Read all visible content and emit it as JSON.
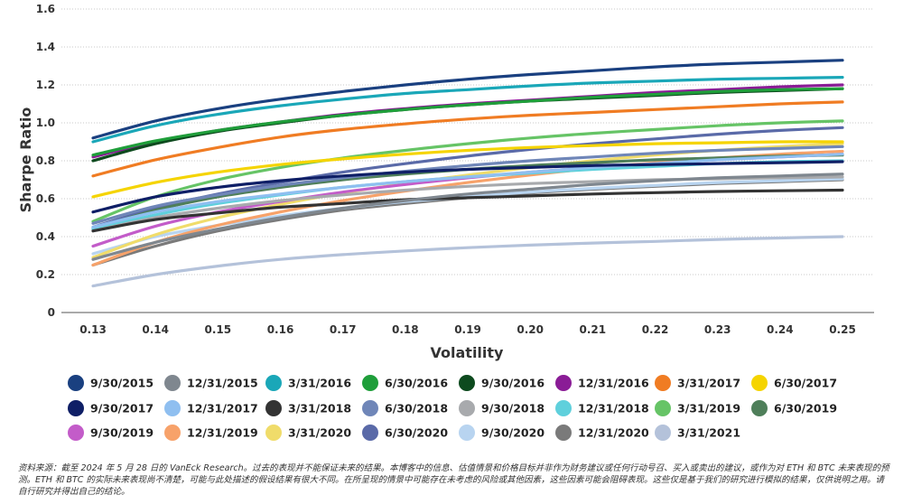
{
  "chart_data": {
    "type": "line",
    "xlabel": "Volatility",
    "ylabel": "Sharpe Ratio",
    "x": [
      0.13,
      0.14,
      0.15,
      0.16,
      0.17,
      0.18,
      0.19,
      0.2,
      0.21,
      0.22,
      0.23,
      0.24,
      0.25
    ],
    "x_tick_labels": [
      "0.13",
      "0.14",
      "0.15",
      "0.16",
      "0.17",
      "0.18",
      "0.19",
      "0.20",
      "0.21",
      "0.22",
      "0.23",
      "0.24",
      "0.25"
    ],
    "ylim": [
      0,
      1.6
    ],
    "y_tick_labels": [
      "0",
      "0.2",
      "0.4",
      "0.6",
      "0.8",
      "1.0",
      "1.2",
      "1.4",
      "1.6"
    ],
    "grid": "horizontal-dotted",
    "legend_position": "bottom",
    "series": [
      {
        "name": "9/30/2015",
        "color": "#1a4080",
        "values": [
          0.92,
          1.01,
          1.075,
          1.125,
          1.165,
          1.2,
          1.23,
          1.255,
          1.275,
          1.295,
          1.31,
          1.32,
          1.33
        ]
      },
      {
        "name": "12/31/2015",
        "color": "#7f878f",
        "values": [
          0.28,
          0.37,
          0.44,
          0.5,
          0.55,
          0.59,
          0.625,
          0.65,
          0.675,
          0.695,
          0.71,
          0.72,
          0.73
        ]
      },
      {
        "name": "3/31/2016",
        "color": "#1aa7b8",
        "values": [
          0.9,
          0.985,
          1.045,
          1.09,
          1.125,
          1.155,
          1.175,
          1.195,
          1.21,
          1.22,
          1.23,
          1.235,
          1.24
        ]
      },
      {
        "name": "6/30/2016",
        "color": "#1f9e3a",
        "values": [
          0.83,
          0.905,
          0.96,
          1.005,
          1.04,
          1.07,
          1.095,
          1.115,
          1.135,
          1.15,
          1.165,
          1.175,
          1.18
        ]
      },
      {
        "name": "9/30/2016",
        "color": "#0d4a1e",
        "values": [
          0.8,
          0.89,
          0.955,
          1.0,
          1.04,
          1.07,
          1.095,
          1.115,
          1.13,
          1.145,
          1.16,
          1.17,
          1.18
        ]
      },
      {
        "name": "12/31/2016",
        "color": "#8a1c96",
        "values": [
          0.82,
          0.9,
          0.96,
          1.005,
          1.045,
          1.075,
          1.1,
          1.12,
          1.14,
          1.16,
          1.175,
          1.19,
          1.2
        ]
      },
      {
        "name": "3/31/2017",
        "color": "#f07c23",
        "values": [
          0.72,
          0.805,
          0.87,
          0.925,
          0.965,
          0.995,
          1.02,
          1.04,
          1.055,
          1.07,
          1.085,
          1.1,
          1.11
        ]
      },
      {
        "name": "6/30/2017",
        "color": "#f5d400",
        "values": [
          0.61,
          0.685,
          0.74,
          0.78,
          0.81,
          0.835,
          0.855,
          0.87,
          0.88,
          0.89,
          0.895,
          0.9,
          0.9
        ]
      },
      {
        "name": "9/30/2017",
        "color": "#0f1f66",
        "values": [
          0.53,
          0.61,
          0.66,
          0.695,
          0.72,
          0.74,
          0.755,
          0.765,
          0.775,
          0.78,
          0.785,
          0.79,
          0.795
        ]
      },
      {
        "name": "12/31/2017",
        "color": "#8fbff0",
        "values": [
          0.45,
          0.53,
          0.585,
          0.625,
          0.66,
          0.69,
          0.715,
          0.74,
          0.765,
          0.785,
          0.805,
          0.82,
          0.835
        ]
      },
      {
        "name": "3/31/2018",
        "color": "#333333",
        "values": [
          0.43,
          0.49,
          0.525,
          0.555,
          0.575,
          0.595,
          0.605,
          0.615,
          0.625,
          0.632,
          0.638,
          0.642,
          0.645
        ]
      },
      {
        "name": "6/30/2018",
        "color": "#6f86b8",
        "values": [
          0.47,
          0.56,
          0.62,
          0.67,
          0.71,
          0.745,
          0.775,
          0.8,
          0.82,
          0.84,
          0.855,
          0.865,
          0.875
        ]
      },
      {
        "name": "9/30/2018",
        "color": "#a8aaad",
        "values": [
          0.43,
          0.5,
          0.55,
          0.59,
          0.62,
          0.645,
          0.665,
          0.68,
          0.69,
          0.7,
          0.705,
          0.71,
          0.715
        ]
      },
      {
        "name": "12/31/2018",
        "color": "#5fd0dc",
        "values": [
          0.44,
          0.515,
          0.575,
          0.62,
          0.66,
          0.69,
          0.715,
          0.735,
          0.755,
          0.77,
          0.785,
          0.795,
          0.8
        ]
      },
      {
        "name": "3/31/2019",
        "color": "#66c466",
        "values": [
          0.48,
          0.61,
          0.7,
          0.765,
          0.815,
          0.855,
          0.89,
          0.92,
          0.945,
          0.965,
          0.985,
          1.0,
          1.01
        ]
      },
      {
        "name": "6/30/2019",
        "color": "#4f7f5a",
        "values": [
          0.44,
          0.54,
          0.61,
          0.66,
          0.7,
          0.73,
          0.755,
          0.775,
          0.79,
          0.805,
          0.815,
          0.825,
          0.83
        ]
      },
      {
        "name": "9/30/2019",
        "color": "#c35cc9",
        "values": [
          0.35,
          0.455,
          0.53,
          0.585,
          0.635,
          0.675,
          0.71,
          0.74,
          0.765,
          0.785,
          0.805,
          0.82,
          0.835
        ]
      },
      {
        "name": "12/31/2019",
        "color": "#f7a26a",
        "values": [
          0.25,
          0.37,
          0.46,
          0.53,
          0.59,
          0.64,
          0.685,
          0.725,
          0.76,
          0.79,
          0.815,
          0.835,
          0.85
        ]
      },
      {
        "name": "3/31/2020",
        "color": "#f0dc6a",
        "values": [
          0.29,
          0.41,
          0.5,
          0.57,
          0.63,
          0.68,
          0.725,
          0.765,
          0.8,
          0.83,
          0.855,
          0.875,
          0.89
        ]
      },
      {
        "name": "6/30/2020",
        "color": "#5a6aa8",
        "values": [
          0.45,
          0.55,
          0.625,
          0.685,
          0.74,
          0.785,
          0.825,
          0.86,
          0.89,
          0.915,
          0.94,
          0.96,
          0.975
        ]
      },
      {
        "name": "9/30/2020",
        "color": "#b8d4f0",
        "values": [
          0.31,
          0.4,
          0.46,
          0.51,
          0.55,
          0.585,
          0.61,
          0.635,
          0.655,
          0.67,
          0.685,
          0.695,
          0.705
        ]
      },
      {
        "name": "12/31/2020",
        "color": "#7a7a7a",
        "values": [
          0.25,
          0.35,
          0.43,
          0.49,
          0.54,
          0.575,
          0.605,
          0.63,
          0.65,
          0.665,
          0.68,
          0.69,
          0.7
        ]
      },
      {
        "name": "3/31/2021",
        "color": "#b4c2da",
        "values": [
          0.14,
          0.2,
          0.245,
          0.28,
          0.305,
          0.325,
          0.342,
          0.355,
          0.366,
          0.375,
          0.385,
          0.393,
          0.4
        ]
      }
    ]
  },
  "footnote": {
    "line1": "资料来源：截至 2024 年 5 月 28 日的 VanEck Research。过去的表现并不能保证未来的结果。本博客中的信息、估值情景和价格目标并非作为财务建议或任何行动号召、买入或卖出的建议，或作为对 ETH 和 BTC 未来表现的预测。ETH 和 BTC 的实际未来表现尚不清楚，可能与此处描述的假设结果有很大不同。在所呈现的情景中可能存在未考虑的风险或其他因素，这些因素可能会阻碍表现。这些仅是基于我们的研究进行模拟的结果，仅供说明之用。请自行研究并得出自己的结论。"
  }
}
